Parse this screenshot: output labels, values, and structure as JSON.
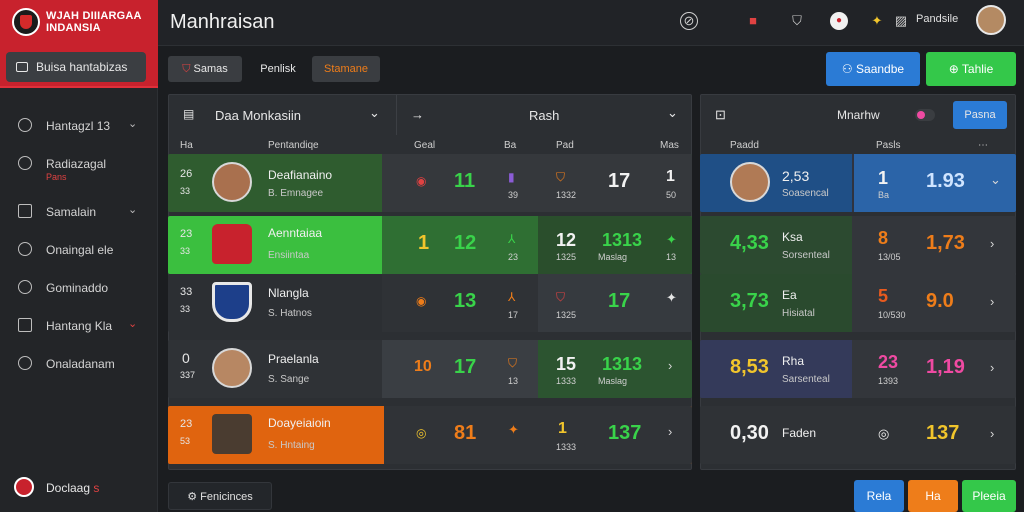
{
  "brand": {
    "title": "WJAH DIIIARGAA INDANSIA",
    "button": "Buisa hantabizas"
  },
  "sidebar": {
    "items": [
      {
        "label": "Hantagzl 13",
        "sub": ""
      },
      {
        "label": "Radiazagal",
        "sub": "Pans"
      },
      {
        "label": "Samalain",
        "sub": ""
      },
      {
        "label": "Onaingal ele",
        "sub": ""
      },
      {
        "label": "Gominaddo",
        "sub": ""
      },
      {
        "label": "Hantang Kla",
        "sub": ""
      },
      {
        "label": "Onaladanam",
        "sub": ""
      }
    ],
    "profile": {
      "name": "Doclaag",
      "mark": "s"
    }
  },
  "header": {
    "title": "Manhraisan",
    "user": "Pandsile"
  },
  "filters": {
    "tab1": "Samas",
    "tab2": "Penlisk",
    "tab3": "Stamane"
  },
  "actions": {
    "primary": "Saandbe",
    "secondary": "Tahlie"
  },
  "left_panel": {
    "select_label": "Daa Monkasiin",
    "right_label": "Rash",
    "headers": {
      "c1": "Ha",
      "c2": "Pentandiqe",
      "c3": "Geal",
      "c4": "Ba",
      "c5": "Pad",
      "c6": "Mas"
    }
  },
  "right_panel": {
    "label": "Mnarhw",
    "button": "Pasna",
    "headers": {
      "c1": "Paadd",
      "c2": "Pasls"
    }
  },
  "rows": [
    {
      "rank_a": "26",
      "rank_b": "33",
      "name": "Deafianaino",
      "sub": "B. Emnagee",
      "n1": "11",
      "s1": "39",
      "n2": "17",
      "s2": "1332",
      "n3": "1",
      "s3": "50",
      "r_val": "2,53",
      "r_name": "Soasencal",
      "r_n1": "1",
      "r_s1": "Ba",
      "r_n2": "1.93"
    },
    {
      "rank_a": "23",
      "rank_b": "33",
      "name": "Aenntaiaa",
      "sub": "Ensiintaa",
      "n1": "1",
      "n1b": "12",
      "s1": "23",
      "n2": "12",
      "s2": "1325",
      "n3": "1313",
      "s3": "Maslag",
      "n4": "13",
      "r_val": "4,33",
      "r_name": "Ksa",
      "r_sub": "Sorsenteal",
      "r_n1": "8",
      "r_s1": "13/05",
      "r_n2": "1,73"
    },
    {
      "rank_a": "33",
      "rank_b": "33",
      "name": "Nlangla",
      "sub": "S. Hatnos",
      "n1": "13",
      "s1": "17",
      "n2": "17",
      "s2": "1325",
      "r_val": "3,73",
      "r_name": "Ea",
      "r_sub": "Hisiatal",
      "r_n1": "5",
      "r_s1": "10/530",
      "r_n2": "9.0"
    },
    {
      "rank_a": "0",
      "rank_b": "337",
      "name": "Praelanla",
      "sub": "S. Sange",
      "n0": "10",
      "n1": "17",
      "s1": "13",
      "n2": "15",
      "s2": "1333",
      "n3": "1313",
      "s3": "Maslag",
      "r_val": "8,53",
      "r_name": "Rha",
      "r_sub": "Sarsenteal",
      "r_n1": "23",
      "r_s1": "1393",
      "r_n2": "1,19"
    },
    {
      "rank_a": "23",
      "rank_b": "53",
      "name": "Doayeiaioin",
      "sub": "S. Hntaing",
      "n1": "81",
      "n2": "1",
      "s2": "1333",
      "n3": "137",
      "r_val": "0,30",
      "r_name": "Faden",
      "r_n2": "137"
    }
  ],
  "footer": {
    "pill": "Fenicinces",
    "b1": "Rela",
    "b2": "Ha",
    "b3": "Pleeia"
  },
  "colors": {
    "accent": "#c8222d",
    "green": "#39d34a",
    "orange": "#ee7d1a",
    "blue": "#2b7bd5"
  }
}
